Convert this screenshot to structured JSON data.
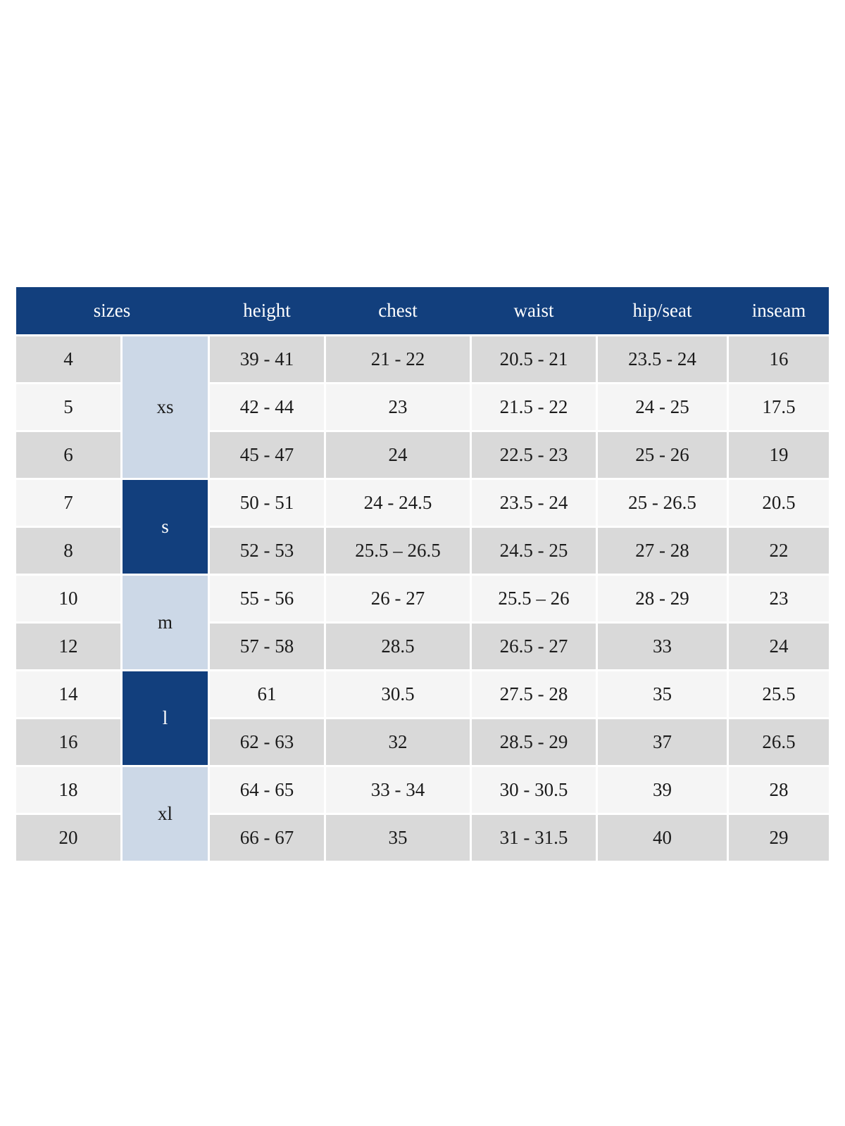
{
  "chart_data": {
    "type": "table",
    "columns": [
      "sizes",
      "height",
      "chest",
      "waist",
      "hip/seat",
      "inseam"
    ],
    "rows": [
      [
        "4",
        "39 - 41",
        "21 - 22",
        "20.5 - 21",
        "23.5 - 24",
        "16"
      ],
      [
        "5",
        "42 - 44",
        "23",
        "21.5 - 22",
        "24 - 25",
        "17.5"
      ],
      [
        "6",
        "45 - 47",
        "24",
        "22.5 - 23",
        "25 - 26",
        "19"
      ],
      [
        "7",
        "50 - 51",
        "24 - 24.5",
        "23.5 - 24",
        "25 - 26.5",
        "20.5"
      ],
      [
        "8",
        "52 - 53",
        "25.5 – 26.5",
        "24.5 - 25",
        "27 - 28",
        "22"
      ],
      [
        "10",
        "55 - 56",
        "26 - 27",
        "25.5 – 26",
        "28 - 29",
        "23"
      ],
      [
        "12",
        "57 - 58",
        "28.5",
        "26.5 - 27",
        "33",
        "24"
      ],
      [
        "14",
        "61",
        "30.5",
        "27.5 - 28",
        "35",
        "25.5"
      ],
      [
        "16",
        "62 - 63",
        "32",
        "28.5 - 29",
        "37",
        "26.5"
      ],
      [
        "18",
        "64 - 65",
        "33 - 34",
        "30 - 30.5",
        "39",
        "28"
      ],
      [
        "20",
        "66 - 67",
        "35",
        "31 - 31.5",
        "40",
        "29"
      ]
    ],
    "groups": [
      {
        "label": "xs",
        "sizes": [
          "4",
          "5",
          "6"
        ],
        "shade": "light-blue"
      },
      {
        "label": "s",
        "sizes": [
          "7",
          "8"
        ],
        "shade": "navy"
      },
      {
        "label": "m",
        "sizes": [
          "10",
          "12"
        ],
        "shade": "light-blue"
      },
      {
        "label": "l",
        "sizes": [
          "14",
          "16"
        ],
        "shade": "navy"
      },
      {
        "label": "xl",
        "sizes": [
          "18",
          "20"
        ],
        "shade": "light-blue"
      }
    ],
    "layout": "header row + 11 body rows; group column spans merged rows"
  },
  "colors": {
    "header_background": "#123f7d",
    "header_text": "#ffffff",
    "group_navy": "#123f7d",
    "group_light_blue": "#ccd8e7",
    "row_gray": "#d9d9d9",
    "row_light": "#f5f5f5",
    "cell_text": "#1b1b1b",
    "page_background": "#ffffff"
  }
}
